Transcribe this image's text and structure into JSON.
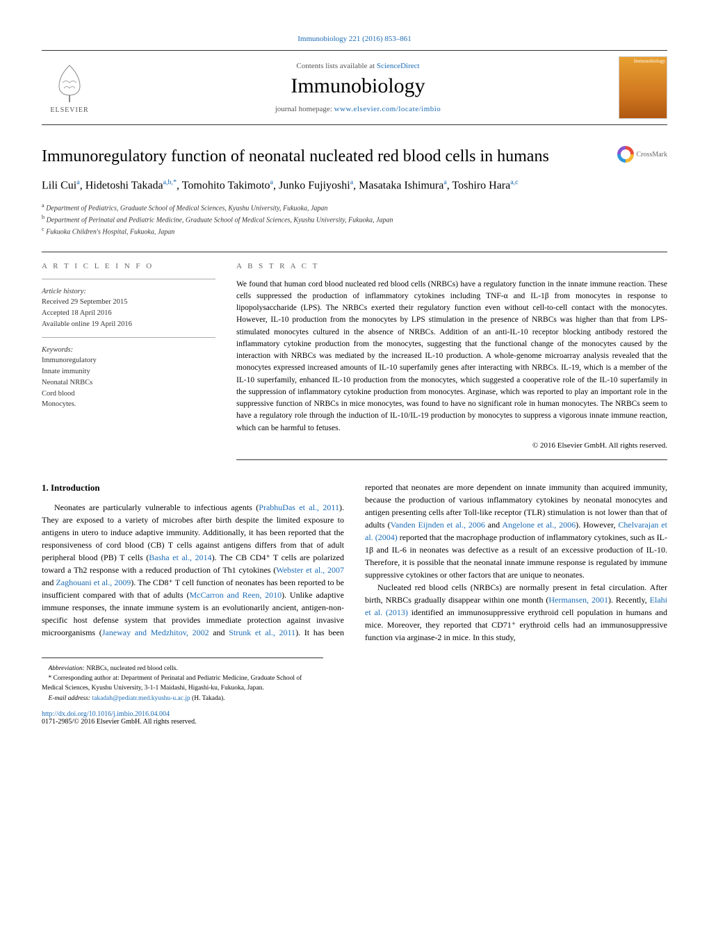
{
  "header": {
    "citation": "Immunobiology 221 (2016) 853–861",
    "contents_prefix": "Contents lists available at ",
    "contents_link": "ScienceDirect",
    "journal_name": "Immunobiology",
    "homepage_prefix": "journal homepage: ",
    "homepage_url": "www.elsevier.com/locate/imbio",
    "publisher": "ELSEVIER",
    "cover_label": "Immunobiology"
  },
  "article": {
    "title": "Immunoregulatory function of neonatal nucleated red blood cells in humans",
    "crossmark_label": "CrossMark",
    "authors_html": "Lili Cui<sup>a</sup>, Hidetoshi Takada<sup>a,b,*</sup>, Tomohito Takimoto<sup>a</sup>, Junko Fujiyoshi<sup>a</sup>, Masataka Ishimura<sup>a</sup>, Toshiro Hara<sup>a,c</sup>",
    "affiliations": {
      "a": "Department of Pediatrics, Graduate School of Medical Sciences, Kyushu University, Fukuoka, Japan",
      "b": "Department of Perinatal and Pediatric Medicine, Graduate School of Medical Sciences, Kyushu University, Fukuoka, Japan",
      "c": "Fukuoka Children's Hospital, Fukuoka, Japan"
    }
  },
  "article_info": {
    "heading": "a r t i c l e   i n f o",
    "history_label": "Article history:",
    "received": "Received 29 September 2015",
    "accepted": "Accepted 18 April 2016",
    "online": "Available online 19 April 2016",
    "keywords_label": "Keywords:",
    "keywords": [
      "Immunoregulatory",
      "Innate immunity",
      "Neonatal NRBCs",
      "Cord blood",
      "Monocytes."
    ]
  },
  "abstract": {
    "heading": "a b s t r a c t",
    "text": "We found that human cord blood nucleated red blood cells (NRBCs) have a regulatory function in the innate immune reaction. These cells suppressed the production of inflammatory cytokines including TNF-α and IL-1β from monocytes in response to lipopolysaccharide (LPS). The NRBCs exerted their regulatory function even without cell-to-cell contact with the monocytes. However, IL-10 production from the monocytes by LPS stimulation in the presence of NRBCs was higher than that from LPS-stimulated monocytes cultured in the absence of NRBCs. Addition of an anti-IL-10 receptor blocking antibody restored the inflammatory cytokine production from the monocytes, suggesting that the functional change of the monocytes caused by the interaction with NRBCs was mediated by the increased IL-10 production. A whole-genome microarray analysis revealed that the monocytes expressed increased amounts of IL-10 superfamily genes after interacting with NRBCs. IL-19, which is a member of the IL-10 superfamily, enhanced IL-10 production from the monocytes, which suggested a cooperative role of the IL-10 superfamily in the suppression of inflammatory cytokine production from monocytes. Arginase, which was reported to play an important role in the suppressive function of NRBCs in mice monocytes, was found to have no significant role in human monocytes. The NRBCs seem to have a regulatory role through the induction of IL-10/IL-19 production by monocytes to suppress a vigorous innate immune reaction, which can be harmful to fetuses.",
    "copyright": "© 2016 Elsevier GmbH. All rights reserved."
  },
  "body": {
    "section_number": "1.",
    "section_title": "Introduction",
    "para1_pre": "Neonates are particularly vulnerable to infectious agents (",
    "para1_ref1": "PrabhuDas et al., 2011",
    "para1_mid1": "). They are exposed to a variety of microbes after birth despite the limited exposure to antigens in utero to induce adaptive immunity. Additionally, it has been reported that the responsiveness of cord blood (CB) T cells against antigens differs from that of adult peripheral blood (PB) T cells (",
    "para1_ref2": "Basha et al., 2014",
    "para1_mid2": "). The CB CD4⁺ T cells are polarized toward a Th2 response with a reduced production of Th1 cytokines (",
    "para1_ref3": "Webster et al., 2007",
    "para1_and1": " and ",
    "para1_ref4": "Zaghouani et al., 2009",
    "para1_mid3": "). The CD8⁺ T cell function of neonates has been reported to be insufficient compared with that of adults (",
    "para1_ref5": "McCarron and Reen, 2010",
    "para1_mid4": "). Unlike adaptive immune responses, the innate immune system is an evolutionarily ancient, antigen-non-specific host defense system that provides immediate protection against invasive microorganisms (",
    "para1_ref6": "Janeway and Medzhitov, 2002",
    "para1_and2": " and ",
    "para1_ref7": "Strunk et al., 2011",
    "para1_mid5": "). It has been reported that neonates are more dependent on innate immunity than acquired immunity, because the production of various inflammatory cytokines by neonatal monocytes and antigen presenting cells after Toll-like receptor (TLR) stimulation is not lower than that of adults (",
    "para1_ref8": "Vanden Eijnden et al., 2006",
    "para1_and3": " and ",
    "para1_ref9": "Angelone et al., 2006",
    "para1_mid6": "). However, ",
    "para1_ref10": "Chelvarajan et al. (2004)",
    "para1_mid7": " reported that the macrophage production of inflammatory cytokines, such as IL-1β and IL-6 in neonates was defective as a result of an excessive production of IL-10. Therefore, it is possible that the neonatal innate immune response is regulated by immune suppressive cytokines or other factors that are unique to neonates.",
    "para2_pre": "Nucleated red blood cells (NRBCs) are normally present in fetal circulation. After birth, NRBCs gradually disappear within one month (",
    "para2_ref1": "Hermansen, 2001",
    "para2_mid1": "). Recently, ",
    "para2_ref2": "Elahi et al. (2013)",
    "para2_mid2": " identified an immunosuppressive erythroid cell population in humans and mice. Moreover, they reported that CD71⁺ erythroid cells had an immunosuppressive function via arginase-2 in mice. In this study,"
  },
  "footnotes": {
    "abbrev_label": "Abbreviation:",
    "abbrev_text": " NRBCs, nucleated red blood cells.",
    "corr_marker": "*",
    "corr_text": " Corresponding author at: Department of Perinatal and Pediatric Medicine, Graduate School of Medical Sciences, Kyushu University, 3-1-1 Maidashi, Higashi-ku, Fukuoka, Japan.",
    "email_label": "E-mail address: ",
    "email": "takadah@pediatr.med.kyushu-u.ac.jp",
    "email_suffix": " (H. Takada).",
    "doi_url": "http://dx.doi.org/10.1016/j.imbio.2016.04.004",
    "issn_line": "0171-2985/© 2016 Elsevier GmbH. All rights reserved."
  },
  "colors": {
    "link": "#1a6bb5",
    "text": "#000000",
    "muted": "#666666",
    "rule": "#333333"
  }
}
